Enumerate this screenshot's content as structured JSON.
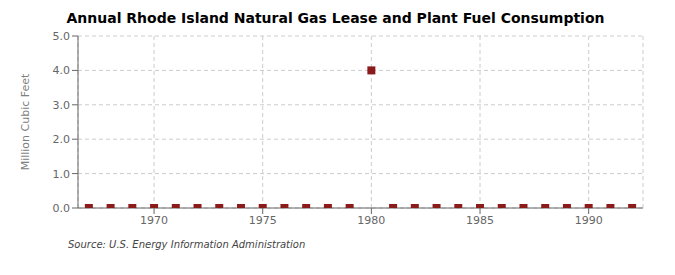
{
  "chart_data": {
    "type": "scatter",
    "title": "Annual Rhode Island Natural Gas Lease and Plant Fuel Consumption",
    "ylabel": "Million Cubic Feet",
    "annotation": "Source: U.S. Energy Information Administration",
    "x": [
      1967,
      1968,
      1969,
      1970,
      1971,
      1972,
      1973,
      1974,
      1975,
      1976,
      1977,
      1978,
      1979,
      1980,
      1981,
      1982,
      1983,
      1984,
      1985,
      1986,
      1987,
      1988,
      1989,
      1990,
      1991,
      1992
    ],
    "values": [
      0,
      0,
      0,
      0,
      0,
      0,
      0,
      0,
      0,
      0,
      0,
      0,
      0,
      4.0,
      0,
      0,
      0,
      0,
      0,
      0,
      0,
      0,
      0,
      0,
      0,
      0
    ],
    "color": "#8b1a1a",
    "marker": "square",
    "xlim": [
      1966.5,
      1992.5
    ],
    "xticks": [
      1970,
      1975,
      1980,
      1985,
      1990
    ],
    "ylim": [
      0.0,
      5.0
    ],
    "yticks": [
      {
        "value": 0.0,
        "label": "0.0"
      },
      {
        "value": 1.0,
        "label": "1.0"
      },
      {
        "value": 2.0,
        "label": "2.0"
      },
      {
        "value": 3.0,
        "label": "3.0"
      },
      {
        "value": 4.0,
        "label": "4.0"
      },
      {
        "value": 5.0,
        "label": "5.0"
      }
    ],
    "grid": true
  }
}
